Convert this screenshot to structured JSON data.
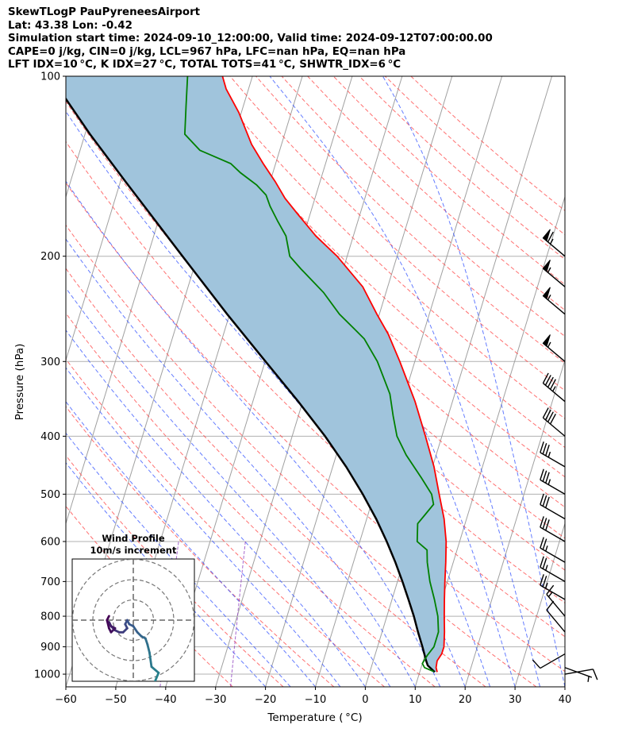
{
  "header": {
    "line1": "SkewTLogP PauPyreneesAirport",
    "line2": "Lat: 43.38   Lon: -0.42",
    "line3": "Simulation start time: 2024-09-10_12:00:00, Valid time: 2024-09-12T07:00:00.00",
    "line4": "CAPE=0 j/kg, CIN=0 j/kg, LCL=967 hPa, LFC=nan hPa, EQ=nan hPa",
    "line5": "LFT IDX=10 °C, K IDX=27 °C, TOTAL TOTS=41 °C, SHWTR_IDX=6 °C"
  },
  "chart_data": {
    "type": "skewt-logp",
    "xlabel": "Temperature ( °C)",
    "ylabel": "Pressure (hPa)",
    "xlim": [
      -60,
      40
    ],
    "ylim": [
      1050,
      100
    ],
    "x_ticks": [
      "−60",
      "−50",
      "−40",
      "−30",
      "−20",
      "−10",
      "0",
      "10",
      "20",
      "30",
      "40"
    ],
    "y_ticks": [
      "1000",
      "900",
      "800",
      "700",
      "600",
      "500",
      "400",
      "300",
      "200",
      "100"
    ],
    "grid": true,
    "colors": {
      "temperature": "#ff0000",
      "dewpoint": "#008000",
      "parcel": "#000000",
      "cape_fill": "#a0c4dc",
      "dry_adiabat": "#ff4040",
      "moist_adiabat": "#3050ff",
      "mixing_ratio": "#9040c0",
      "isotherm": "#a0a0a0"
    },
    "temperature_profile": [
      {
        "p": 992,
        "t": 13.5
      },
      {
        "p": 975,
        "t": 13.0
      },
      {
        "p": 950,
        "t": 12.8
      },
      {
        "p": 925,
        "t": 13.3
      },
      {
        "p": 900,
        "t": 13.3
      },
      {
        "p": 850,
        "t": 12.5
      },
      {
        "p": 800,
        "t": 11.5
      },
      {
        "p": 750,
        "t": 10.5
      },
      {
        "p": 700,
        "t": 9.5
      },
      {
        "p": 650,
        "t": 8.5
      },
      {
        "p": 600,
        "t": 7.3
      },
      {
        "p": 550,
        "t": 5.5
      },
      {
        "p": 500,
        "t": 3.0
      },
      {
        "p": 450,
        "t": 0.3
      },
      {
        "p": 400,
        "t": -3.3
      },
      {
        "p": 350,
        "t": -7.5
      },
      {
        "p": 300,
        "t": -13.0
      },
      {
        "p": 270,
        "t": -17.0
      },
      {
        "p": 250,
        "t": -20.5
      },
      {
        "p": 225,
        "t": -25.0
      },
      {
        "p": 200,
        "t": -32.0
      },
      {
        "p": 185,
        "t": -37.5
      },
      {
        "p": 170,
        "t": -42.5
      },
      {
        "p": 160,
        "t": -46.0
      },
      {
        "p": 150,
        "t": -49.0
      },
      {
        "p": 140,
        "t": -52.5
      },
      {
        "p": 130,
        "t": -56.0
      },
      {
        "p": 115,
        "t": -60.5
      },
      {
        "p": 105,
        "t": -64.5
      },
      {
        "p": 100,
        "t": -66.0
      }
    ],
    "dewpoint_profile": [
      {
        "p": 990,
        "t": 12.8
      },
      {
        "p": 975,
        "t": 10.7
      },
      {
        "p": 960,
        "t": 10.0
      },
      {
        "p": 930,
        "t": 10.5
      },
      {
        "p": 900,
        "t": 11.3
      },
      {
        "p": 850,
        "t": 11.3
      },
      {
        "p": 800,
        "t": 10.2
      },
      {
        "p": 750,
        "t": 8.5
      },
      {
        "p": 700,
        "t": 6.5
      },
      {
        "p": 650,
        "t": 4.8
      },
      {
        "p": 620,
        "t": 4.0
      },
      {
        "p": 600,
        "t": 1.5
      },
      {
        "p": 560,
        "t": 0.5
      },
      {
        "p": 540,
        "t": 1.5
      },
      {
        "p": 520,
        "t": 2.5
      },
      {
        "p": 500,
        "t": 1.5
      },
      {
        "p": 470,
        "t": -1.5
      },
      {
        "p": 430,
        "t": -6.0
      },
      {
        "p": 400,
        "t": -9.0
      },
      {
        "p": 370,
        "t": -11.0
      },
      {
        "p": 340,
        "t": -13.0
      },
      {
        "p": 300,
        "t": -17.5
      },
      {
        "p": 275,
        "t": -21.5
      },
      {
        "p": 265,
        "t": -24.0
      },
      {
        "p": 250,
        "t": -28.0
      },
      {
        "p": 230,
        "t": -32.5
      },
      {
        "p": 210,
        "t": -38.5
      },
      {
        "p": 200,
        "t": -41.5
      },
      {
        "p": 185,
        "t": -43.5
      },
      {
        "p": 175,
        "t": -46.0
      },
      {
        "p": 165,
        "t": -48.5
      },
      {
        "p": 158,
        "t": -50.0
      },
      {
        "p": 152,
        "t": -52.5
      },
      {
        "p": 145,
        "t": -56.5
      },
      {
        "p": 140,
        "t": -59.0
      },
      {
        "p": 133,
        "t": -66.0
      },
      {
        "p": 125,
        "t": -70.0
      },
      {
        "p": 112,
        "t": -71.5
      },
      {
        "p": 100,
        "t": -73.0
      }
    ],
    "parcel_profile": [
      {
        "p": 992,
        "t": 13.0
      },
      {
        "p": 967,
        "t": 11.2
      },
      {
        "p": 950,
        "t": 10.6
      },
      {
        "p": 900,
        "t": 9.0
      },
      {
        "p": 850,
        "t": 7.2
      },
      {
        "p": 800,
        "t": 5.4
      },
      {
        "p": 750,
        "t": 3.3
      },
      {
        "p": 700,
        "t": 1.0
      },
      {
        "p": 650,
        "t": -1.6
      },
      {
        "p": 600,
        "t": -4.6
      },
      {
        "p": 550,
        "t": -8.1
      },
      {
        "p": 500,
        "t": -12.3
      },
      {
        "p": 450,
        "t": -17.3
      },
      {
        "p": 400,
        "t": -23.4
      },
      {
        "p": 350,
        "t": -30.9
      },
      {
        "p": 300,
        "t": -39.9
      },
      {
        "p": 250,
        "t": -50.5
      },
      {
        "p": 200,
        "t": -63.0
      },
      {
        "p": 150,
        "t": -79.0
      },
      {
        "p": 125,
        "t": -89.0
      },
      {
        "p": 100,
        "t": -100.5
      }
    ],
    "wind_barbs": [
      {
        "p": 1000,
        "dir": 80,
        "kt": 10
      },
      {
        "p": 975,
        "dir": 110,
        "kt": 5
      },
      {
        "p": 925,
        "dir": 240,
        "kt": 10
      },
      {
        "p": 850,
        "dir": 320,
        "kt": 10
      },
      {
        "p": 800,
        "dir": 320,
        "kt": 15
      },
      {
        "p": 750,
        "dir": 300,
        "kt": 25
      },
      {
        "p": 700,
        "dir": 300,
        "kt": 25
      },
      {
        "p": 650,
        "dir": 300,
        "kt": 25
      },
      {
        "p": 600,
        "dir": 300,
        "kt": 30
      },
      {
        "p": 550,
        "dir": 300,
        "kt": 30
      },
      {
        "p": 500,
        "dir": 300,
        "kt": 35
      },
      {
        "p": 450,
        "dir": 300,
        "kt": 35
      },
      {
        "p": 400,
        "dir": 310,
        "kt": 40
      },
      {
        "p": 350,
        "dir": 310,
        "kt": 45
      },
      {
        "p": 300,
        "dir": 310,
        "kt": 55
      },
      {
        "p": 250,
        "dir": 310,
        "kt": 55
      },
      {
        "p": 225,
        "dir": 310,
        "kt": 55
      },
      {
        "p": 200,
        "dir": 310,
        "kt": 65
      }
    ],
    "hodograph": {
      "title": "Wind Profile",
      "subtitle": "10m/s increment",
      "rings_ms": [
        10,
        20,
        30
      ],
      "points": [
        {
          "u": 10,
          "v": -60
        },
        {
          "u": 9,
          "v": -50
        },
        {
          "u": 9,
          "v": -42
        },
        {
          "u": 10,
          "v": -32
        },
        {
          "u": 12.5,
          "v": -26
        },
        {
          "u": 9,
          "v": -23
        },
        {
          "u": 8,
          "v": -16
        },
        {
          "u": 7,
          "v": -12
        },
        {
          "u": 6,
          "v": -9
        },
        {
          "u": 4,
          "v": -8
        },
        {
          "u": 2,
          "v": -6
        },
        {
          "u": 0,
          "v": -3
        },
        {
          "u": -2,
          "v": -2
        },
        {
          "u": -3,
          "v": 0
        },
        {
          "u": -4,
          "v": -2
        },
        {
          "u": -3,
          "v": -4
        },
        {
          "u": -5,
          "v": -6
        },
        {
          "u": -7,
          "v": -6
        },
        {
          "u": -9,
          "v": -5
        },
        {
          "u": -11,
          "v": -3
        },
        {
          "u": -12,
          "v": -1
        },
        {
          "u": -11,
          "v": -3
        },
        {
          "u": -9,
          "v": -4
        },
        {
          "u": -11,
          "v": -6
        },
        {
          "u": -12,
          "v": -4
        },
        {
          "u": -13,
          "v": 0
        },
        {
          "u": -12,
          "v": 2
        }
      ]
    }
  }
}
